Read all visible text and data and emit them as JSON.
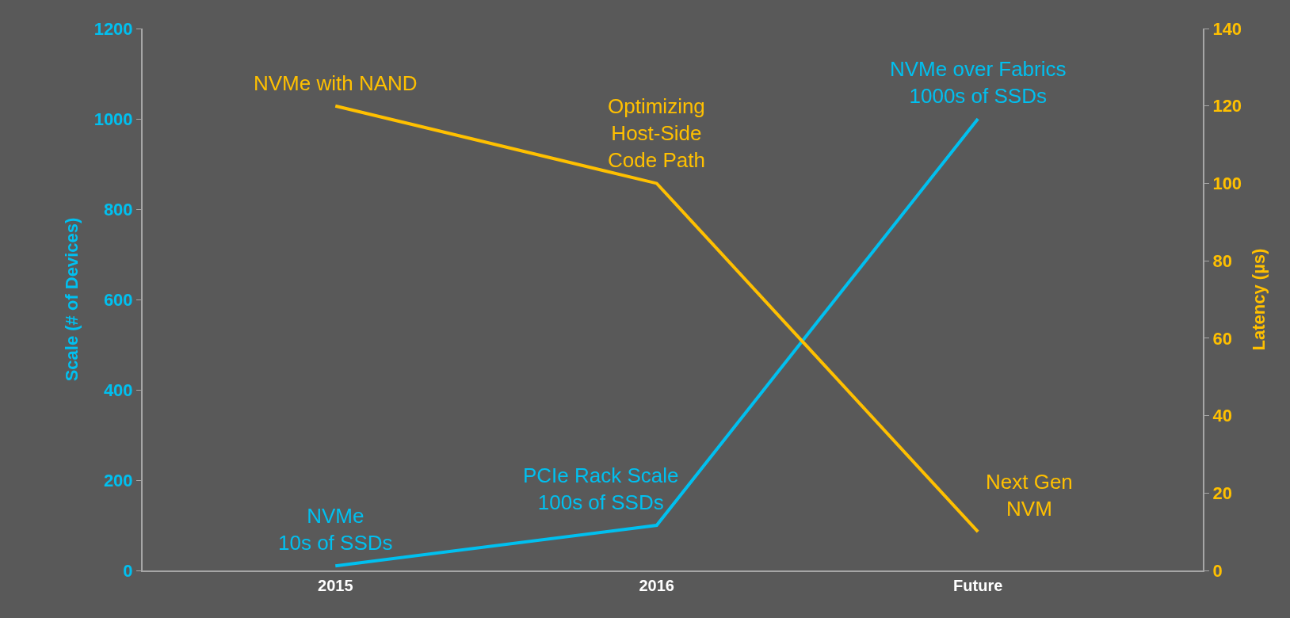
{
  "chart_data": {
    "type": "line",
    "categories": [
      "2015",
      "2016",
      "Future"
    ],
    "series": [
      {
        "name": null,
        "color": "#00c0f0",
        "values": [
          10,
          100,
          1000
        ]
      },
      {
        "name": null,
        "color": "#ffc000",
        "values": [
          120,
          100,
          10
        ],
        "axis": "y2"
      }
    ],
    "ylabel": "Scale (# of Devices)",
    "y2label": "Latency (µs)",
    "ylim": [
      0,
      1200
    ],
    "yticks": [
      0,
      200,
      400,
      600,
      800,
      1000,
      1200
    ],
    "y2lim": [
      0,
      140
    ],
    "y2ticks": [
      0,
      20,
      40,
      60,
      80,
      100,
      120,
      140
    ],
    "annotations": [
      "NVMe\n10s of SSDs",
      "PCIe Rack Scale\n100s of SSDs",
      "NVMe over Fabrics\n1000s of SSDs",
      "NVMe with NAND",
      "Optimizing\nHost-Side\nCode Path",
      "Next Gen\nNVM"
    ],
    "marker": "none",
    "line_style": "solid"
  }
}
